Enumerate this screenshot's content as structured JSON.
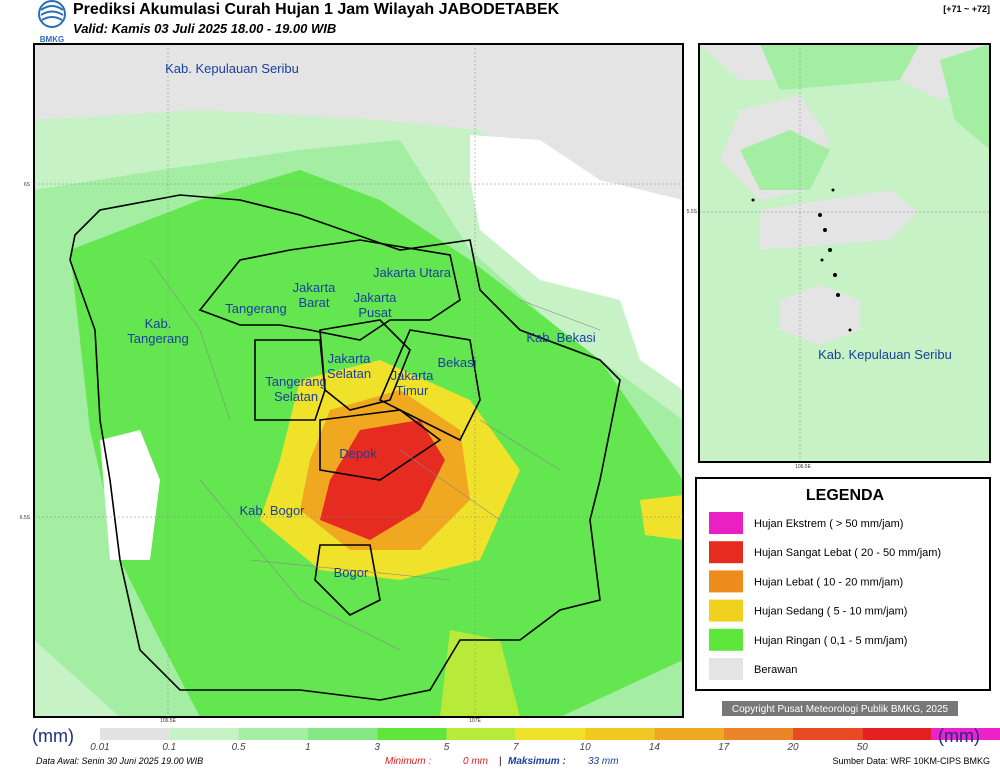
{
  "header": {
    "title": "Prediksi Akumulasi Curah Hujan 1 Jam Wilayah JABODETABEK",
    "valid": "Valid: Kamis 03 Juli 2025 18.00 - 19.00 WIB",
    "code": "[+71 ~ +72]",
    "logo": "BMKG"
  },
  "map": {
    "labels": [
      [
        "Kab. Kepulauan Seribu"
      ],
      [
        "Jakarta Utara"
      ],
      [
        "Jakarta",
        "Barat"
      ],
      [
        "Jakarta",
        "Pusat"
      ],
      [
        "Tangerang"
      ],
      [
        "Kab.",
        "Tangerang"
      ],
      [
        "Kab. Bekasi"
      ],
      [
        "Jakarta",
        "Selatan"
      ],
      [
        "Bekasi"
      ],
      [
        "Jakarta",
        "Timur"
      ],
      [
        "Tangerang",
        "Selatan"
      ],
      [
        "Depok"
      ],
      [
        "Kab. Bogor"
      ],
      [
        "Bogor"
      ]
    ],
    "axis": [
      "6S",
      "6.5S",
      "106.5E",
      "107E"
    ]
  },
  "inset": {
    "label": "Kab. Kepulauan Seribu",
    "axis": [
      "5.5S",
      "106.5E"
    ]
  },
  "legend": {
    "title": "LEGENDA",
    "items": [
      {
        "label": "Hujan Ekstrem ( > 50 mm/jam)",
        "color": "#ea1fc4"
      },
      {
        "label": "Hujan Sangat Lebat ( 20 - 50 mm/jam)",
        "color": "#e62b20"
      },
      {
        "label": "Hujan Lebat ( 10 - 20 mm/jam)",
        "color": "#ed8c1c"
      },
      {
        "label": "Hujan Sedang ( 5 - 10 mm/jam)",
        "color": "#f0d21e"
      },
      {
        "label": "Hujan Ringan ( 0,1 - 5 mm/jam)",
        "color": "#5ee63a"
      },
      {
        "label": "Berawan",
        "color": "#e4e4e4"
      }
    ]
  },
  "copyright": "Copyright Pusat Meteorologi Publik BMKG, 2025",
  "colorbar": {
    "unit": "(mm)",
    "ticks": [
      "0.01",
      "0.1",
      "0.5",
      "1",
      "3",
      "5",
      "7",
      "10",
      "14",
      "17",
      "20",
      "50"
    ],
    "colors": [
      "#e2e2e2",
      "#c6f2c6",
      "#a4eea4",
      "#84e884",
      "#5ee63a",
      "#b8ea3a",
      "#f0e22a",
      "#f0c820",
      "#f0a820",
      "#ec8428",
      "#e84a22",
      "#e62020",
      "#ee22c8"
    ]
  },
  "footer": {
    "data_awal": "Data Awal: Senin 30 Juni 2025 19.00 WIB",
    "min_label": "Minimum :",
    "min_value": "0 mm",
    "separator": "|",
    "max_label": "Maksimum :",
    "max_value": "33 mm",
    "source": "Sumber Data: WRF 10KM-CIPS BMKG"
  }
}
